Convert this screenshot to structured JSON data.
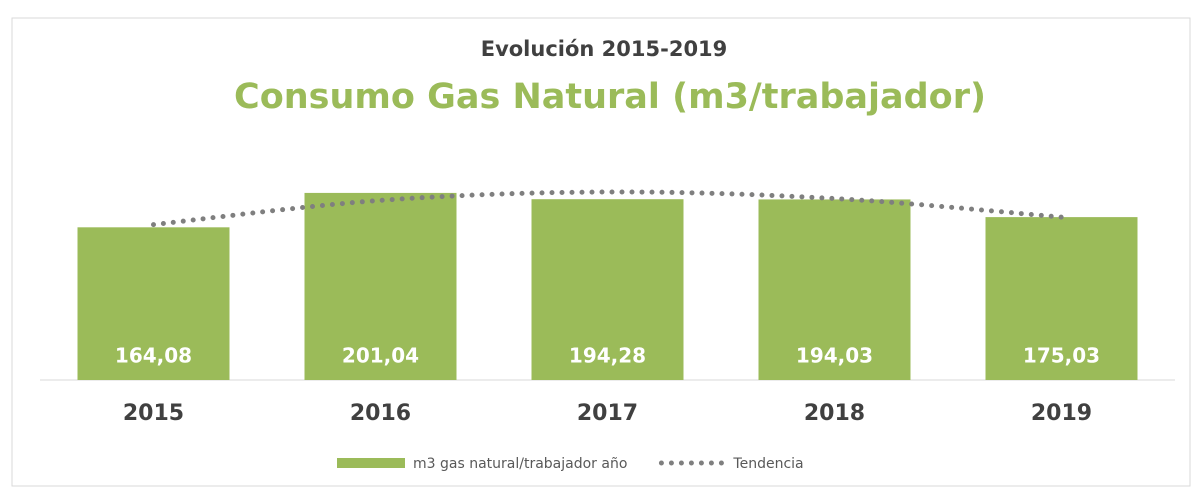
{
  "chart_data": {
    "type": "bar",
    "title": "Evolución 2015-2019",
    "subtitle": "Consumo Gas Natural (m3/trabajador)",
    "categories": [
      "2015",
      "2016",
      "2017",
      "2018",
      "2019"
    ],
    "series": [
      {
        "name": "m3 gas natural/trabajador año",
        "color": "#9bbb59",
        "type": "bar",
        "values": [
          164.08,
          201.04,
          194.28,
          194.03,
          175.03
        ],
        "value_labels": [
          "164,08",
          "201,04",
          "194,28",
          "194,03",
          "175,03"
        ]
      },
      {
        "name": "Tendencia",
        "color": "#7f7f7f",
        "type": "line",
        "line_style": "dotted",
        "values": [
          167,
          193,
          202,
          195,
          175
        ]
      }
    ],
    "ylim": [
      0,
      245
    ],
    "legend": "bottom"
  }
}
